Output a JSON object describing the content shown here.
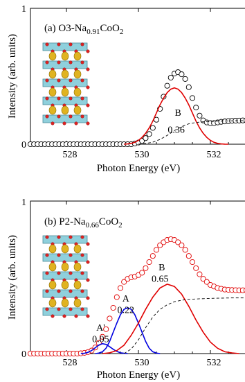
{
  "chart_data": [
    {
      "type": "line",
      "title": "(a) O3-Na0.91CoO2",
      "title_parts": {
        "pre": "(a) O3-Na",
        "sub1": "0.91",
        "mid": "CoO",
        "sub2": "2"
      },
      "xlabel": "Photon Energy (eV)",
      "ylabel": "Intensity (arb. units)",
      "xlim": [
        527,
        533
      ],
      "ylim": [
        0,
        1
      ],
      "xticks": [
        "528",
        "530",
        "532"
      ],
      "yticks": [
        "0",
        "1"
      ],
      "series": [
        {
          "kind": "markers",
          "color": "#000000",
          "x": [
            527.0,
            527.1,
            527.2,
            527.3,
            527.4,
            527.5,
            527.6,
            527.7,
            527.8,
            527.9,
            528.0,
            528.1,
            528.2,
            528.3,
            528.4,
            528.5,
            528.6,
            528.7,
            528.8,
            528.9,
            529.0,
            529.1,
            529.2,
            529.3,
            529.4,
            529.5,
            529.6,
            529.7,
            529.8,
            529.9,
            530.0,
            530.1,
            530.2,
            530.3,
            530.4,
            530.5,
            530.6,
            530.7,
            530.8,
            530.9,
            531.0,
            531.1,
            531.2,
            531.3,
            531.4,
            531.5,
            531.6,
            531.7,
            531.8,
            531.9,
            532.0,
            532.1,
            532.2,
            532.3,
            532.4,
            532.5,
            532.6,
            532.7,
            532.8,
            532.9,
            533.0
          ],
          "y": [
            0,
            0,
            0,
            0,
            0,
            0,
            0,
            0,
            0,
            0,
            0,
            0,
            0,
            0,
            0,
            0,
            0,
            0,
            0,
            0,
            0,
            0,
            0,
            0,
            0,
            0,
            0,
            0,
            0,
            0.005,
            0.012,
            0.025,
            0.045,
            0.075,
            0.12,
            0.18,
            0.26,
            0.35,
            0.43,
            0.49,
            0.52,
            0.53,
            0.515,
            0.48,
            0.42,
            0.34,
            0.27,
            0.21,
            0.175,
            0.16,
            0.155,
            0.155,
            0.16,
            0.165,
            0.168,
            0.17,
            0.172,
            0.173,
            0.174,
            0.175,
            0.175
          ]
        },
        {
          "kind": "line",
          "color": "#e00000",
          "x": [
            529.6,
            529.7,
            529.8,
            529.9,
            530.0,
            530.1,
            530.2,
            530.3,
            530.4,
            530.5,
            530.6,
            530.7,
            530.8,
            530.9,
            531.0,
            531.1,
            531.2,
            531.3,
            531.4,
            531.5,
            531.6,
            531.7,
            531.8,
            531.9,
            532.0,
            532.1,
            532.2,
            532.3,
            532.4,
            532.5
          ],
          "y": [
            0,
            0.002,
            0.006,
            0.014,
            0.028,
            0.05,
            0.08,
            0.12,
            0.17,
            0.23,
            0.29,
            0.34,
            0.38,
            0.405,
            0.415,
            0.405,
            0.38,
            0.34,
            0.29,
            0.23,
            0.17,
            0.12,
            0.08,
            0.05,
            0.028,
            0.014,
            0.006,
            0.002,
            0.0005,
            0
          ]
        },
        {
          "kind": "dashed",
          "color": "#000000",
          "x": [
            530.0,
            530.2,
            530.4,
            530.6,
            530.8,
            531.0,
            531.2,
            531.4,
            531.6,
            531.8,
            532.0,
            532.2,
            532.4,
            532.6,
            532.8,
            533.0
          ],
          "y": [
            0,
            0.005,
            0.015,
            0.035,
            0.065,
            0.1,
            0.13,
            0.15,
            0.16,
            0.165,
            0.168,
            0.17,
            0.171,
            0.172,
            0.173,
            0.174
          ]
        }
      ],
      "annotations": [
        {
          "text": "B",
          "x": 531.1,
          "y": 0.21
        },
        {
          "text": "0.36",
          "x": 531.05,
          "y": 0.085
        }
      ]
    },
    {
      "type": "line",
      "title": "(b) P2-Na0.66CoO2",
      "title_parts": {
        "pre": "(b) P2-Na",
        "sub1": "0.66",
        "mid": "CoO",
        "sub2": "2"
      },
      "xlabel": "Photon Energy (eV)",
      "ylabel": "Intensity (arb. units)",
      "xlim": [
        527,
        533
      ],
      "ylim": [
        0,
        1
      ],
      "xticks": [
        "528",
        "530",
        "532"
      ],
      "yticks": [
        "0",
        "1"
      ],
      "series": [
        {
          "kind": "markers",
          "color": "#e00000",
          "x": [
            527.0,
            527.1,
            527.2,
            527.3,
            527.4,
            527.5,
            527.6,
            527.7,
            527.8,
            527.9,
            528.0,
            528.1,
            528.2,
            528.3,
            528.4,
            528.5,
            528.6,
            528.7,
            528.8,
            528.9,
            529.0,
            529.1,
            529.2,
            529.3,
            529.4,
            529.5,
            529.6,
            529.7,
            529.8,
            529.9,
            530.0,
            530.1,
            530.2,
            530.3,
            530.4,
            530.5,
            530.6,
            530.7,
            530.8,
            530.9,
            531.0,
            531.1,
            531.2,
            531.3,
            531.4,
            531.5,
            531.6,
            531.7,
            531.8,
            531.9,
            532.0,
            532.1,
            532.2,
            532.3,
            532.4,
            532.5,
            532.6,
            532.7,
            532.8,
            532.9,
            533.0
          ],
          "y": [
            0,
            0,
            0,
            0,
            0,
            0,
            0,
            0,
            0,
            0,
            0,
            0,
            0,
            0,
            0.002,
            0.005,
            0.01,
            0.02,
            0.04,
            0.07,
            0.11,
            0.16,
            0.23,
            0.3,
            0.37,
            0.43,
            0.47,
            0.49,
            0.5,
            0.505,
            0.515,
            0.53,
            0.56,
            0.6,
            0.64,
            0.68,
            0.71,
            0.73,
            0.745,
            0.75,
            0.745,
            0.73,
            0.71,
            0.68,
            0.64,
            0.6,
            0.56,
            0.52,
            0.49,
            0.47,
            0.45,
            0.44,
            0.43,
            0.425,
            0.42,
            0.418,
            0.417,
            0.416,
            0.415,
            0.415,
            0.415
          ]
        },
        {
          "kind": "line",
          "color": "#0000e0",
          "x": [
            528.4,
            528.5,
            528.6,
            528.7,
            528.8,
            528.9,
            529.0,
            529.1,
            529.2,
            529.3,
            529.4,
            529.5,
            529.6,
            529.7
          ],
          "y": [
            0,
            0.002,
            0.008,
            0.02,
            0.038,
            0.056,
            0.065,
            0.06,
            0.045,
            0.028,
            0.014,
            0.005,
            0.002,
            0
          ]
        },
        {
          "kind": "line",
          "color": "#0000e0",
          "x": [
            528.8,
            528.9,
            529.0,
            529.1,
            529.2,
            529.3,
            529.4,
            529.5,
            529.6,
            529.7,
            529.8,
            529.9,
            530.0,
            530.1,
            530.2,
            530.3,
            530.4,
            530.5,
            530.6
          ],
          "y": [
            0,
            0.003,
            0.012,
            0.035,
            0.08,
            0.14,
            0.2,
            0.255,
            0.29,
            0.3,
            0.29,
            0.255,
            0.2,
            0.14,
            0.08,
            0.035,
            0.012,
            0.003,
            0
          ]
        },
        {
          "kind": "line",
          "color": "#e00000",
          "x": [
            529.0,
            529.2,
            529.4,
            529.6,
            529.8,
            530.0,
            530.2,
            530.4,
            530.6,
            530.8,
            531.0,
            531.2,
            531.4,
            531.6,
            531.8,
            532.0,
            532.2,
            532.4,
            532.6,
            532.8
          ],
          "y": [
            0,
            0.005,
            0.02,
            0.055,
            0.12,
            0.2,
            0.29,
            0.37,
            0.43,
            0.455,
            0.44,
            0.39,
            0.31,
            0.22,
            0.14,
            0.075,
            0.035,
            0.012,
            0.004,
            0
          ]
        },
        {
          "kind": "dashed",
          "color": "#000000",
          "x": [
            529.6,
            529.8,
            530.0,
            530.2,
            530.4,
            530.6,
            530.8,
            531.0,
            531.2,
            531.4,
            531.6,
            531.8,
            532.0,
            532.2,
            532.4,
            532.6,
            532.8,
            533.0
          ],
          "y": [
            0,
            0.03,
            0.09,
            0.17,
            0.24,
            0.29,
            0.32,
            0.34,
            0.35,
            0.355,
            0.358,
            0.36,
            0.362,
            0.363,
            0.364,
            0.365,
            0.365,
            0.365
          ]
        }
      ],
      "annotations": [
        {
          "text": "A'",
          "x": 528.95,
          "y": 0.15
        },
        {
          "text": "0.05",
          "x": 528.95,
          "y": 0.075
        },
        {
          "text": "A",
          "x": 529.65,
          "y": 0.34
        },
        {
          "text": "0.22",
          "x": 529.65,
          "y": 0.265
        },
        {
          "text": "B",
          "x": 530.65,
          "y": 0.545
        },
        {
          "text": "0.65",
          "x": 530.6,
          "y": 0.47
        }
      ]
    }
  ]
}
